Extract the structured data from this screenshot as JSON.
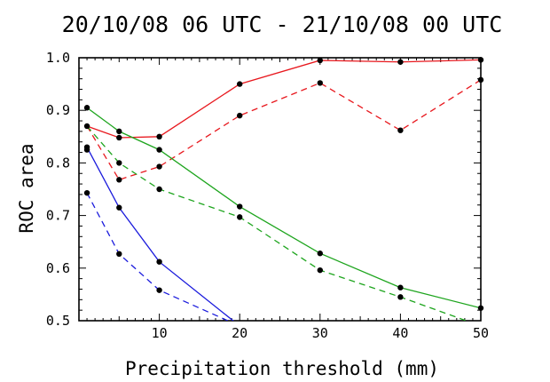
{
  "chart_data": {
    "type": "line",
    "title": "20/10/08 06 UTC - 21/10/08 00 UTC",
    "xlabel": "Precipitation threshold (mm)",
    "ylabel": "ROC area",
    "xlim": [
      0,
      50
    ],
    "ylim": [
      0.5,
      1.0
    ],
    "x_ticks": [
      10,
      20,
      30,
      40,
      50
    ],
    "y_ticks": [
      0.5,
      0.6,
      0.7,
      0.8,
      0.9,
      1.0
    ],
    "y_tick_labels": [
      "0.5",
      "0.6",
      "0.7",
      "0.8",
      "0.9",
      "1.0"
    ],
    "grid": false,
    "legend": "none",
    "series": [
      {
        "color": "#e8181e",
        "line_style": "solid",
        "points": [
          [
            1,
            0.87
          ],
          [
            5,
            0.848
          ],
          [
            10,
            0.85
          ],
          [
            20,
            0.95
          ],
          [
            30,
            0.995
          ],
          [
            40,
            0.992
          ],
          [
            50,
            0.996
          ]
        ]
      },
      {
        "color": "#e8181e",
        "line_style": "dashed",
        "points": [
          [
            1,
            0.87
          ],
          [
            5,
            0.768
          ],
          [
            10,
            0.793
          ],
          [
            20,
            0.89
          ],
          [
            30,
            0.952
          ],
          [
            40,
            0.862
          ],
          [
            50,
            0.958
          ]
        ]
      },
      {
        "color": "#1ea51e",
        "line_style": "solid",
        "points": [
          [
            1,
            0.905
          ],
          [
            5,
            0.86
          ],
          [
            10,
            0.825
          ],
          [
            20,
            0.717
          ],
          [
            30,
            0.628
          ],
          [
            40,
            0.563
          ],
          [
            50,
            0.524
          ]
        ]
      },
      {
        "color": "#1ea51e",
        "line_style": "dashed",
        "points": [
          [
            1,
            0.87
          ],
          [
            5,
            0.8
          ],
          [
            10,
            0.75
          ],
          [
            20,
            0.697
          ],
          [
            30,
            0.596
          ],
          [
            40,
            0.545
          ],
          [
            50,
            0.49
          ]
        ]
      },
      {
        "color": "#1a1adc",
        "line_style": "solid",
        "points": [
          [
            1,
            0.83
          ],
          [
            5,
            0.715
          ],
          [
            10,
            0.612
          ],
          [
            20,
            0.49
          ]
        ]
      },
      {
        "color": "#1a1adc",
        "line_style": "dashed",
        "points": [
          [
            1,
            0.743
          ],
          [
            5,
            0.627
          ],
          [
            10,
            0.558
          ],
          [
            20,
            0.49
          ]
        ]
      }
    ],
    "markers": [
      [
        1,
        0.905
      ],
      [
        1,
        0.87
      ],
      [
        1,
        0.83
      ],
      [
        1,
        0.825
      ],
      [
        1,
        0.743
      ],
      [
        5,
        0.86
      ],
      [
        5,
        0.848
      ],
      [
        5,
        0.8
      ],
      [
        5,
        0.768
      ],
      [
        5,
        0.715
      ],
      [
        5,
        0.627
      ],
      [
        10,
        0.85
      ],
      [
        10,
        0.825
      ],
      [
        10,
        0.793
      ],
      [
        10,
        0.75
      ],
      [
        10,
        0.612
      ],
      [
        10,
        0.558
      ],
      [
        20,
        0.95
      ],
      [
        20,
        0.89
      ],
      [
        20,
        0.717
      ],
      [
        20,
        0.697
      ],
      [
        30,
        0.995
      ],
      [
        30,
        0.952
      ],
      [
        30,
        0.628
      ],
      [
        30,
        0.596
      ],
      [
        40,
        0.992
      ],
      [
        40,
        0.862
      ],
      [
        40,
        0.563
      ],
      [
        40,
        0.545
      ],
      [
        50,
        0.996
      ],
      [
        50,
        0.958
      ],
      [
        50,
        0.524
      ]
    ]
  }
}
